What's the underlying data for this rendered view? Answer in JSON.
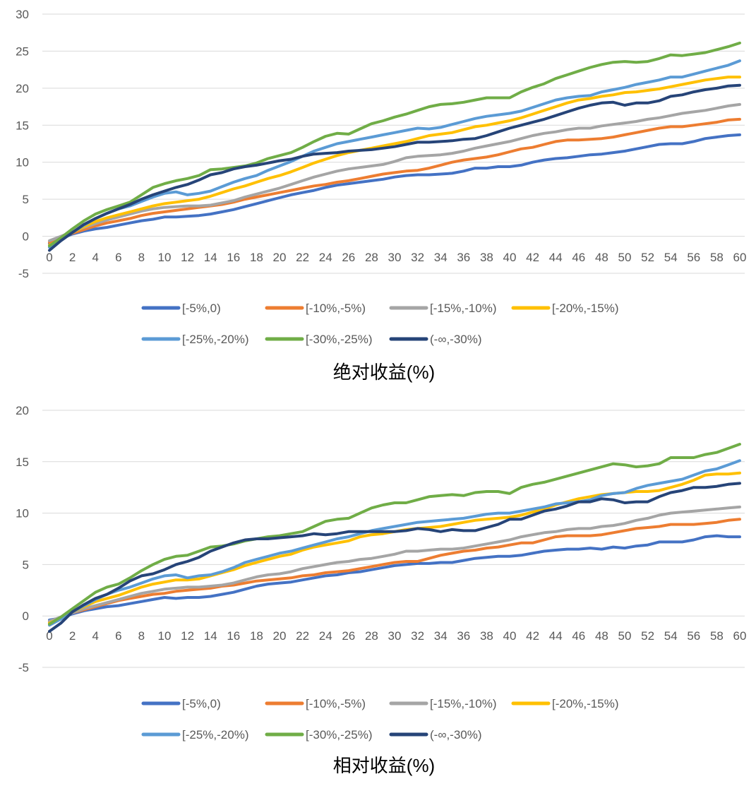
{
  "chart_data": [
    {
      "type": "line",
      "title": "绝对收益(%)",
      "xlabel": "",
      "ylabel": "",
      "ylim": [
        -5,
        30
      ],
      "yticks": [
        -5,
        0,
        5,
        10,
        15,
        20,
        25,
        30
      ],
      "xlim": [
        0,
        60
      ],
      "xticks": [
        0,
        2,
        4,
        6,
        8,
        10,
        12,
        14,
        16,
        18,
        20,
        22,
        24,
        26,
        28,
        30,
        32,
        34,
        36,
        38,
        40,
        42,
        44,
        46,
        48,
        50,
        52,
        54,
        56,
        58,
        60
      ],
      "grid": "horizontal",
      "legend_position": "bottom",
      "x": [
        0,
        1,
        2,
        3,
        4,
        5,
        6,
        7,
        8,
        9,
        10,
        11,
        12,
        13,
        14,
        15,
        16,
        17,
        18,
        19,
        20,
        21,
        22,
        23,
        24,
        25,
        26,
        27,
        28,
        29,
        30,
        31,
        32,
        33,
        34,
        35,
        36,
        37,
        38,
        39,
        40,
        41,
        42,
        43,
        44,
        45,
        46,
        47,
        48,
        49,
        50,
        51,
        52,
        53,
        54,
        55,
        56,
        57,
        58,
        59,
        60
      ],
      "series": [
        {
          "name": "[-5%,0)",
          "color": "#4472C4",
          "values": [
            -1.0,
            -0.3,
            0.3,
            0.7,
            1.0,
            1.2,
            1.5,
            1.8,
            2.1,
            2.3,
            2.6,
            2.6,
            2.7,
            2.8,
            3.0,
            3.3,
            3.6,
            4.0,
            4.4,
            4.8,
            5.2,
            5.6,
            5.9,
            6.2,
            6.6,
            6.9,
            7.1,
            7.3,
            7.5,
            7.7,
            8.0,
            8.2,
            8.3,
            8.3,
            8.4,
            8.5,
            8.8,
            9.2,
            9.2,
            9.4,
            9.4,
            9.6,
            10.0,
            10.3,
            10.5,
            10.6,
            10.8,
            11.0,
            11.1,
            11.3,
            11.5,
            11.8,
            12.1,
            12.4,
            12.5,
            12.5,
            12.8,
            13.2,
            13.4,
            13.6,
            13.7
          ]
        },
        {
          "name": "[-10%,-5%)",
          "color": "#ED7D31",
          "values": [
            -0.8,
            -0.2,
            0.4,
            0.9,
            1.4,
            1.8,
            2.1,
            2.4,
            2.8,
            3.1,
            3.3,
            3.5,
            3.7,
            3.9,
            4.1,
            4.3,
            4.6,
            5.0,
            5.3,
            5.6,
            5.9,
            6.2,
            6.5,
            6.8,
            7.0,
            7.3,
            7.5,
            7.8,
            8.1,
            8.4,
            8.6,
            8.8,
            8.9,
            9.2,
            9.6,
            10.0,
            10.3,
            10.5,
            10.7,
            11.0,
            11.4,
            11.8,
            12.0,
            12.4,
            12.8,
            13.0,
            13.0,
            13.1,
            13.2,
            13.4,
            13.7,
            14.0,
            14.3,
            14.6,
            14.8,
            14.8,
            15.0,
            15.2,
            15.4,
            15.7,
            15.8
          ]
        },
        {
          "name": "[-15%,-10%)",
          "color": "#A5A5A5",
          "values": [
            -0.6,
            0.0,
            0.6,
            1.2,
            1.7,
            2.2,
            2.6,
            3.0,
            3.4,
            3.7,
            3.9,
            4.0,
            4.1,
            4.1,
            4.2,
            4.5,
            4.8,
            5.3,
            5.7,
            6.1,
            6.5,
            7.0,
            7.5,
            8.0,
            8.4,
            8.8,
            9.1,
            9.3,
            9.5,
            9.7,
            10.1,
            10.6,
            10.8,
            10.9,
            11.0,
            11.2,
            11.5,
            11.9,
            12.2,
            12.5,
            12.8,
            13.2,
            13.6,
            13.9,
            14.1,
            14.4,
            14.6,
            14.6,
            14.9,
            15.1,
            15.3,
            15.5,
            15.8,
            16.0,
            16.3,
            16.6,
            16.8,
            17.0,
            17.3,
            17.6,
            17.8
          ]
        },
        {
          "name": "[-20%,-15%)",
          "color": "#FFC000",
          "values": [
            -1.2,
            -0.4,
            0.5,
            1.3,
            2.0,
            2.5,
            2.9,
            3.3,
            3.7,
            4.1,
            4.4,
            4.6,
            4.8,
            5.0,
            5.4,
            5.9,
            6.4,
            6.8,
            7.3,
            7.8,
            8.2,
            8.7,
            9.3,
            9.9,
            10.4,
            10.9,
            11.3,
            11.6,
            11.9,
            12.2,
            12.5,
            12.8,
            13.2,
            13.6,
            13.8,
            14.0,
            14.4,
            14.8,
            15.0,
            15.3,
            15.6,
            16.0,
            16.5,
            17.0,
            17.5,
            18.0,
            18.4,
            18.6,
            18.9,
            19.1,
            19.4,
            19.5,
            19.7,
            19.9,
            20.2,
            20.5,
            20.8,
            21.1,
            21.3,
            21.5,
            21.5
          ]
        },
        {
          "name": "[-25%,-20%)",
          "color": "#5B9BD5",
          "values": [
            -1.5,
            -0.5,
            0.5,
            1.5,
            2.4,
            3.1,
            3.7,
            4.1,
            4.7,
            5.3,
            5.8,
            6.0,
            5.6,
            5.8,
            6.1,
            6.7,
            7.3,
            7.8,
            8.2,
            8.9,
            9.5,
            10.1,
            10.8,
            11.5,
            12.0,
            12.5,
            12.8,
            13.1,
            13.4,
            13.7,
            14.0,
            14.3,
            14.6,
            14.5,
            14.7,
            15.1,
            15.5,
            15.9,
            16.2,
            16.4,
            16.6,
            16.9,
            17.4,
            17.9,
            18.4,
            18.7,
            18.9,
            19.0,
            19.5,
            19.8,
            20.1,
            20.5,
            20.8,
            21.1,
            21.5,
            21.5,
            21.9,
            22.3,
            22.7,
            23.1,
            23.7
          ]
        },
        {
          "name": "[-30%,-25%)",
          "color": "#70AD47",
          "values": [
            -1.3,
            -0.2,
            1.0,
            2.1,
            3.0,
            3.6,
            4.1,
            4.6,
            5.6,
            6.6,
            7.1,
            7.5,
            7.8,
            8.2,
            9.0,
            9.1,
            9.3,
            9.5,
            9.9,
            10.5,
            10.9,
            11.3,
            12.0,
            12.8,
            13.5,
            13.9,
            13.8,
            14.5,
            15.2,
            15.6,
            16.1,
            16.5,
            17.0,
            17.5,
            17.8,
            17.9,
            18.1,
            18.4,
            18.7,
            18.7,
            18.7,
            19.5,
            20.1,
            20.6,
            21.3,
            21.8,
            22.3,
            22.8,
            23.2,
            23.5,
            23.6,
            23.5,
            23.6,
            24.0,
            24.5,
            24.4,
            24.6,
            24.8,
            25.2,
            25.6,
            26.1
          ]
        },
        {
          "name": "(-∞,-30%)",
          "color": "#264478",
          "values": [
            -1.9,
            -0.6,
            0.5,
            1.6,
            2.4,
            3.1,
            3.7,
            4.3,
            5.0,
            5.6,
            6.1,
            6.6,
            7.0,
            7.6,
            8.3,
            8.6,
            9.1,
            9.4,
            9.6,
            9.9,
            10.2,
            10.4,
            10.8,
            11.1,
            11.2,
            11.3,
            11.5,
            11.6,
            11.7,
            11.9,
            12.1,
            12.4,
            12.7,
            12.7,
            12.8,
            12.9,
            13.1,
            13.2,
            13.6,
            14.1,
            14.6,
            15.0,
            15.4,
            15.8,
            16.3,
            16.8,
            17.3,
            17.7,
            18.0,
            18.1,
            17.7,
            18.0,
            18.0,
            18.3,
            18.9,
            19.1,
            19.5,
            19.8,
            20.0,
            20.3,
            20.4
          ]
        }
      ]
    },
    {
      "type": "line",
      "title": "相对收益(%)",
      "xlabel": "",
      "ylabel": "",
      "ylim": [
        -5,
        20
      ],
      "yticks": [
        -5,
        0,
        5,
        10,
        15,
        20
      ],
      "xlim": [
        0,
        60
      ],
      "xticks": [
        0,
        2,
        4,
        6,
        8,
        10,
        12,
        14,
        16,
        18,
        20,
        22,
        24,
        26,
        28,
        30,
        32,
        34,
        36,
        38,
        40,
        42,
        44,
        46,
        48,
        50,
        52,
        54,
        56,
        58,
        60
      ],
      "grid": "horizontal",
      "legend_position": "bottom",
      "x": [
        0,
        1,
        2,
        3,
        4,
        5,
        6,
        7,
        8,
        9,
        10,
        11,
        12,
        13,
        14,
        15,
        16,
        17,
        18,
        19,
        20,
        21,
        22,
        23,
        24,
        25,
        26,
        27,
        28,
        29,
        30,
        31,
        32,
        33,
        34,
        35,
        36,
        37,
        38,
        39,
        40,
        41,
        42,
        43,
        44,
        45,
        46,
        47,
        48,
        49,
        50,
        51,
        52,
        53,
        54,
        55,
        56,
        57,
        58,
        59,
        60
      ],
      "series": [
        {
          "name": "[-5%,0)",
          "color": "#4472C4",
          "values": [
            -0.4,
            -0.2,
            0.2,
            0.5,
            0.7,
            0.9,
            1.0,
            1.2,
            1.4,
            1.6,
            1.8,
            1.7,
            1.8,
            1.8,
            1.9,
            2.1,
            2.3,
            2.6,
            2.9,
            3.1,
            3.2,
            3.3,
            3.5,
            3.7,
            3.9,
            4.0,
            4.2,
            4.3,
            4.5,
            4.7,
            4.9,
            5.0,
            5.1,
            5.1,
            5.2,
            5.2,
            5.4,
            5.6,
            5.7,
            5.8,
            5.8,
            5.9,
            6.1,
            6.3,
            6.4,
            6.5,
            6.5,
            6.6,
            6.5,
            6.7,
            6.6,
            6.8,
            6.9,
            7.2,
            7.2,
            7.2,
            7.4,
            7.7,
            7.8,
            7.7,
            7.7
          ]
        },
        {
          "name": "[-10%,-5%)",
          "color": "#ED7D31",
          "values": [
            -0.6,
            -0.2,
            0.3,
            0.6,
            0.9,
            1.2,
            1.5,
            1.7,
            1.9,
            2.1,
            2.2,
            2.4,
            2.5,
            2.6,
            2.7,
            2.9,
            3.0,
            3.2,
            3.4,
            3.5,
            3.6,
            3.7,
            3.9,
            4.0,
            4.2,
            4.3,
            4.4,
            4.6,
            4.8,
            5.0,
            5.2,
            5.3,
            5.3,
            5.6,
            5.9,
            6.1,
            6.3,
            6.4,
            6.6,
            6.7,
            6.9,
            7.1,
            7.1,
            7.4,
            7.7,
            7.8,
            7.8,
            7.8,
            7.9,
            8.1,
            8.3,
            8.5,
            8.6,
            8.7,
            8.9,
            8.9,
            8.9,
            9.0,
            9.1,
            9.3,
            9.4
          ]
        },
        {
          "name": "[-15%,-10%)",
          "color": "#A5A5A5",
          "values": [
            -0.5,
            -0.1,
            0.3,
            0.7,
            1.0,
            1.3,
            1.6,
            1.9,
            2.2,
            2.4,
            2.6,
            2.7,
            2.8,
            2.8,
            2.9,
            3.0,
            3.2,
            3.5,
            3.8,
            4.0,
            4.1,
            4.3,
            4.6,
            4.8,
            5.0,
            5.2,
            5.3,
            5.5,
            5.6,
            5.8,
            6.0,
            6.3,
            6.3,
            6.4,
            6.5,
            6.5,
            6.6,
            6.8,
            7.0,
            7.2,
            7.4,
            7.7,
            7.9,
            8.1,
            8.2,
            8.4,
            8.5,
            8.5,
            8.7,
            8.8,
            9.0,
            9.3,
            9.5,
            9.8,
            10.0,
            10.1,
            10.2,
            10.3,
            10.4,
            10.5,
            10.6
          ]
        },
        {
          "name": "[-20%,-15%)",
          "color": "#FFC000",
          "values": [
            -0.7,
            -0.2,
            0.4,
            0.9,
            1.4,
            1.7,
            2.0,
            2.4,
            2.8,
            3.1,
            3.3,
            3.5,
            3.5,
            3.6,
            3.9,
            4.2,
            4.5,
            4.9,
            5.2,
            5.5,
            5.8,
            6.0,
            6.4,
            6.7,
            6.9,
            7.1,
            7.3,
            7.7,
            7.9,
            8.0,
            8.2,
            8.4,
            8.5,
            8.6,
            8.7,
            8.9,
            9.1,
            9.3,
            9.4,
            9.5,
            9.6,
            9.8,
            10.1,
            10.4,
            10.8,
            11.1,
            11.4,
            11.6,
            11.8,
            11.9,
            12.0,
            12.1,
            12.1,
            12.2,
            12.5,
            12.8,
            13.2,
            13.7,
            13.8,
            13.8,
            13.9
          ]
        },
        {
          "name": "[-25%,-20%)",
          "color": "#5B9BD5",
          "values": [
            -0.9,
            -0.3,
            0.4,
            1.0,
            1.6,
            2.1,
            2.5,
            2.8,
            3.2,
            3.6,
            3.9,
            4.0,
            3.7,
            3.9,
            4.0,
            4.3,
            4.7,
            5.2,
            5.5,
            5.8,
            6.1,
            6.3,
            6.6,
            6.9,
            7.2,
            7.5,
            7.7,
            8.0,
            8.3,
            8.5,
            8.7,
            8.9,
            9.1,
            9.2,
            9.3,
            9.4,
            9.5,
            9.7,
            9.9,
            10.0,
            10.0,
            10.2,
            10.4,
            10.6,
            10.9,
            11.0,
            11.1,
            11.3,
            11.7,
            11.9,
            12.0,
            12.4,
            12.7,
            12.9,
            13.1,
            13.3,
            13.7,
            14.1,
            14.3,
            14.7,
            15.1
          ]
        },
        {
          "name": "[-30%,-25%)",
          "color": "#70AD47",
          "values": [
            -0.8,
            -0.1,
            0.7,
            1.5,
            2.3,
            2.8,
            3.1,
            3.7,
            4.4,
            5.0,
            5.5,
            5.8,
            5.9,
            6.3,
            6.7,
            6.8,
            7.0,
            7.3,
            7.5,
            7.7,
            7.8,
            8.0,
            8.2,
            8.7,
            9.2,
            9.4,
            9.5,
            10.0,
            10.5,
            10.8,
            11.0,
            11.0,
            11.3,
            11.6,
            11.7,
            11.8,
            11.7,
            12.0,
            12.1,
            12.1,
            11.9,
            12.5,
            12.8,
            13.0,
            13.3,
            13.6,
            13.9,
            14.2,
            14.5,
            14.8,
            14.7,
            14.5,
            14.6,
            14.8,
            15.4,
            15.4,
            15.4,
            15.7,
            15.9,
            16.3,
            16.7
          ]
        },
        {
          "name": "(-∞,-30%)",
          "color": "#264478",
          "values": [
            -1.5,
            -0.7,
            0.4,
            1.1,
            1.7,
            2.1,
            2.7,
            3.4,
            3.9,
            4.1,
            4.5,
            5.0,
            5.3,
            5.7,
            6.3,
            6.7,
            7.1,
            7.4,
            7.5,
            7.5,
            7.6,
            7.7,
            7.8,
            8.0,
            7.9,
            8.0,
            8.2,
            8.2,
            8.2,
            8.2,
            8.2,
            8.3,
            8.5,
            8.4,
            8.2,
            8.4,
            8.3,
            8.3,
            8.6,
            8.9,
            9.4,
            9.4,
            9.8,
            10.2,
            10.4,
            10.7,
            11.1,
            11.1,
            11.4,
            11.3,
            11.0,
            11.1,
            11.1,
            11.6,
            12.0,
            12.2,
            12.5,
            12.5,
            12.6,
            12.8,
            12.9
          ]
        }
      ]
    }
  ]
}
